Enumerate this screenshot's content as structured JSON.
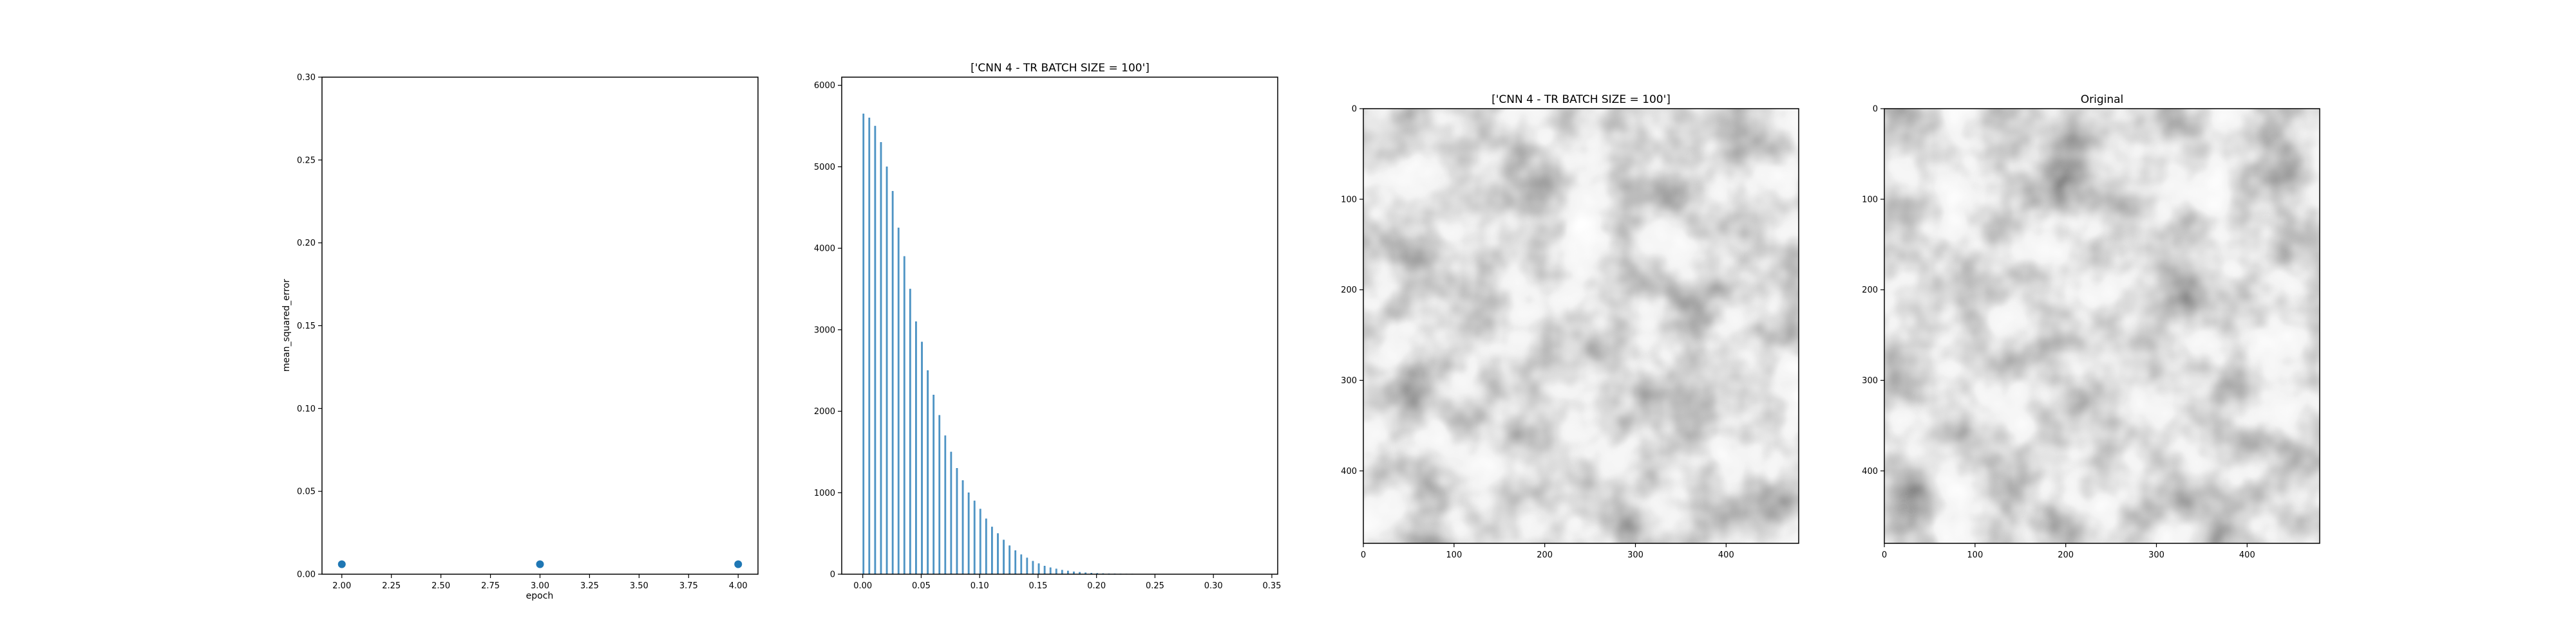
{
  "chart_data": [
    {
      "type": "scatter",
      "xlabel": "epoch",
      "ylabel": "mean_squared_error",
      "xlim": [
        1.9,
        4.1
      ],
      "ylim": [
        0,
        0.3
      ],
      "xticks": [
        "2.00",
        "2.25",
        "2.50",
        "2.75",
        "3.00",
        "3.25",
        "3.50",
        "3.75",
        "4.00"
      ],
      "yticks": [
        "0.00",
        "0.05",
        "0.10",
        "0.15",
        "0.20",
        "0.25",
        "0.30"
      ],
      "x": [
        2,
        3,
        4
      ],
      "y": [
        0.006,
        0.006,
        0.006
      ],
      "color": "#1f77b4"
    },
    {
      "type": "bar",
      "title": "['CNN 4 - TR BATCH SIZE = 100']",
      "xlim": [
        -0.018,
        0.355
      ],
      "ylim": [
        0,
        6100
      ],
      "xticks": [
        "0.00",
        "0.05",
        "0.10",
        "0.15",
        "0.20",
        "0.25",
        "0.30",
        "0.35"
      ],
      "yticks": [
        "0",
        "1000",
        "2000",
        "3000",
        "4000",
        "5000",
        "6000"
      ],
      "bin_width": 0.0012,
      "x": [
        0.0,
        0.005,
        0.01,
        0.015,
        0.02,
        0.025,
        0.03,
        0.035,
        0.04,
        0.045,
        0.05,
        0.055,
        0.06,
        0.065,
        0.07,
        0.075,
        0.08,
        0.085,
        0.09,
        0.095,
        0.1,
        0.105,
        0.11,
        0.115,
        0.12,
        0.125,
        0.13,
        0.135,
        0.14,
        0.145,
        0.15,
        0.155,
        0.16,
        0.165,
        0.17,
        0.175,
        0.18,
        0.185,
        0.19,
        0.195,
        0.2,
        0.205,
        0.21,
        0.215,
        0.22,
        0.225,
        0.23,
        0.235,
        0.24,
        0.245,
        0.25,
        0.255,
        0.26,
        0.265,
        0.27,
        0.275,
        0.28,
        0.285,
        0.29
      ],
      "values": [
        5650,
        5600,
        5500,
        5300,
        5000,
        4700,
        4250,
        3900,
        3500,
        3100,
        2850,
        2500,
        2200,
        1950,
        1700,
        1500,
        1300,
        1150,
        1000,
        900,
        800,
        680,
        580,
        500,
        420,
        350,
        290,
        240,
        200,
        160,
        130,
        100,
        80,
        65,
        50,
        40,
        30,
        24,
        18,
        14,
        11,
        8,
        6,
        5,
        4,
        3,
        3,
        2,
        2,
        2,
        1,
        1,
        1,
        1,
        1,
        1,
        1,
        0,
        0
      ],
      "color": "#1f77b4"
    },
    {
      "type": "image",
      "title": "['CNN 4 - TR BATCH SIZE = 100']",
      "xticks": [
        "0",
        "100",
        "200",
        "300",
        "400"
      ],
      "yticks": [
        "0",
        "100",
        "200",
        "300",
        "400"
      ],
      "extent": [
        0,
        480
      ]
    },
    {
      "type": "image",
      "title": "Original",
      "xticks": [
        "0",
        "100",
        "200",
        "300",
        "400"
      ],
      "yticks": [
        "0",
        "100",
        "200",
        "300",
        "400"
      ],
      "extent": [
        0,
        480
      ]
    }
  ]
}
